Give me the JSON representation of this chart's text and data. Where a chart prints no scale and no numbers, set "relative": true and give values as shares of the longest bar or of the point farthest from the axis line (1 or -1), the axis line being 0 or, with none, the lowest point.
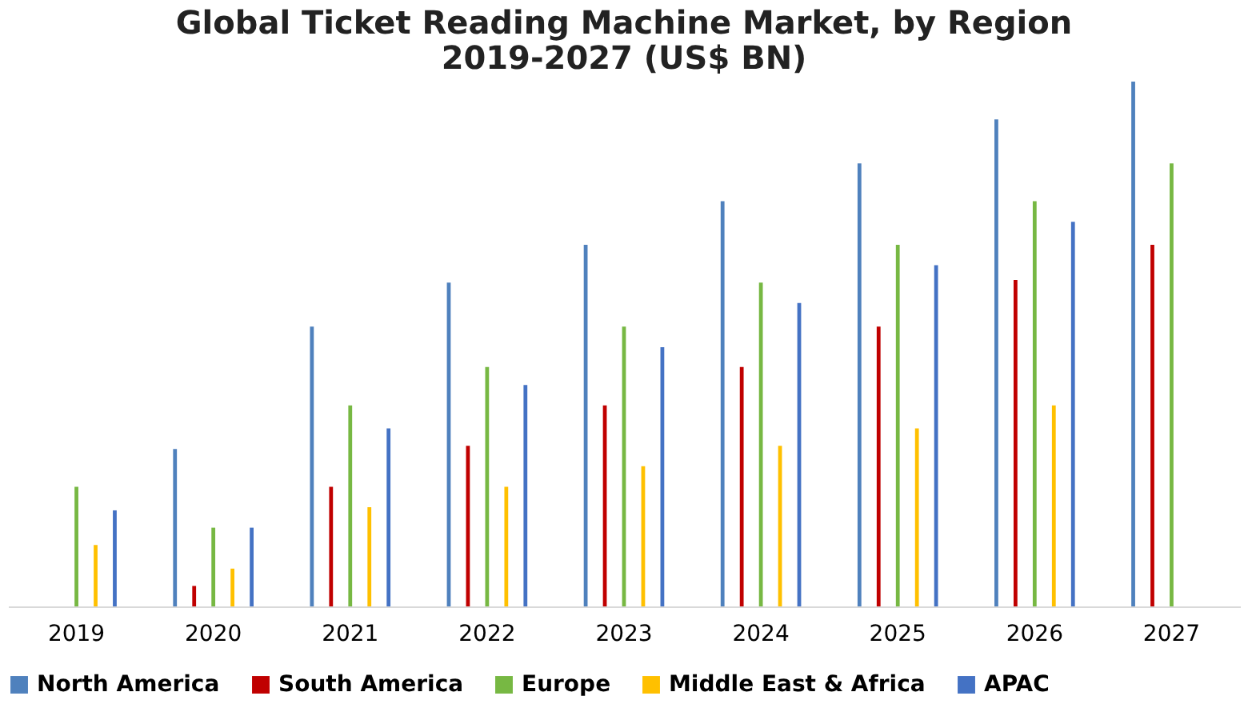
{
  "chart_data": {
    "type": "bar",
    "title": "Global Ticket Reading Machine Market, by Region\n2019-2027 (US$ BN)",
    "relative": true,
    "legend": "bottom",
    "categories": [
      "2019",
      "2020",
      "2021",
      "2022",
      "2023",
      "2024",
      "2025",
      "2026",
      "2027"
    ],
    "series": [
      {
        "name": "North America",
        "color": "#4f81bd",
        "values": [
          null,
          0.3,
          0.533,
          0.617,
          0.689,
          0.772,
          0.844,
          0.928,
          1
        ]
      },
      {
        "name": "South America",
        "color": "#c00000",
        "values": [
          null,
          0.039,
          0.228,
          0.306,
          0.383,
          0.456,
          0.533,
          0.622,
          0.689
        ]
      },
      {
        "name": "Europe",
        "color": "#77b843",
        "values": [
          0.228,
          0.15,
          0.383,
          0.456,
          0.533,
          0.617,
          0.689,
          0.772,
          0.844
        ]
      },
      {
        "name": "Middle East & Africa",
        "color": "#ffc000",
        "values": [
          0.117,
          0.072,
          0.189,
          0.228,
          0.267,
          0.306,
          0.339,
          0.383,
          null
        ]
      },
      {
        "name": "APAC",
        "color": "#4472c4",
        "values": [
          0.183,
          0.15,
          0.339,
          0.422,
          0.494,
          0.578,
          0.65,
          0.733,
          null
        ]
      }
    ]
  }
}
